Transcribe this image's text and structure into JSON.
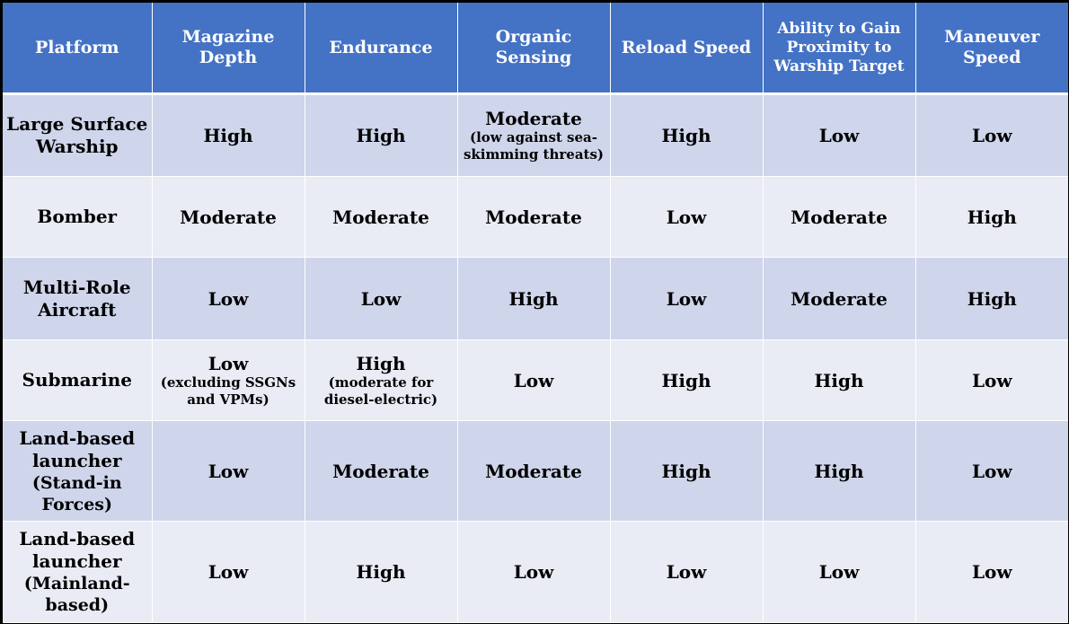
{
  "headers": [
    "Platform",
    "Magazine Depth",
    "Endurance",
    "Organic Sensing",
    "Reload Speed",
    "Ability to Gain Proximity to Warship Target",
    "Maneuver Speed"
  ],
  "rows": [
    {
      "platform": "Large Surface Warship",
      "magazine_depth": "High",
      "endurance": "High",
      "organic_sensing": "Moderate",
      "organic_sensing_note": "(low against sea-skimming threats)",
      "reload_speed": "High",
      "proximity": "Low",
      "maneuver_speed": "Low"
    },
    {
      "platform": "Bomber",
      "magazine_depth": "Moderate",
      "endurance": "Moderate",
      "organic_sensing": "Moderate",
      "reload_speed": "Low",
      "proximity": "Moderate",
      "maneuver_speed": "High"
    },
    {
      "platform": "Multi-Role Aircraft",
      "magazine_depth": "Low",
      "endurance": "Low",
      "organic_sensing": "High",
      "reload_speed": "Low",
      "proximity": "Moderate",
      "maneuver_speed": "High"
    },
    {
      "platform": "Submarine",
      "magazine_depth": "Low",
      "magazine_depth_note": "(excluding SSGNs and VPMs)",
      "endurance": "High",
      "endurance_note": "(moderate for diesel-electric)",
      "organic_sensing": "Low",
      "reload_speed": "High",
      "proximity": "High",
      "maneuver_speed": "Low"
    },
    {
      "platform": "Land-based launcher",
      "platform_note": "(Stand-in Forces)",
      "magazine_depth": "Low",
      "endurance": "Moderate",
      "organic_sensing": "Moderate",
      "reload_speed": "High",
      "proximity": "High",
      "maneuver_speed": "Low"
    },
    {
      "platform": "Land-based launcher",
      "platform_note": "(Mainland-based)",
      "magazine_depth": "Low",
      "endurance": "High",
      "organic_sensing": "Low",
      "reload_speed": "Low",
      "proximity": "Low",
      "maneuver_speed": "Low"
    }
  ],
  "colors": {
    "header_bg": "#4472c4",
    "header_text": "#ffffff",
    "row_odd_bg": "#cfd5ea",
    "row_even_bg": "#e9ebf5",
    "frame_border": "#000000"
  }
}
